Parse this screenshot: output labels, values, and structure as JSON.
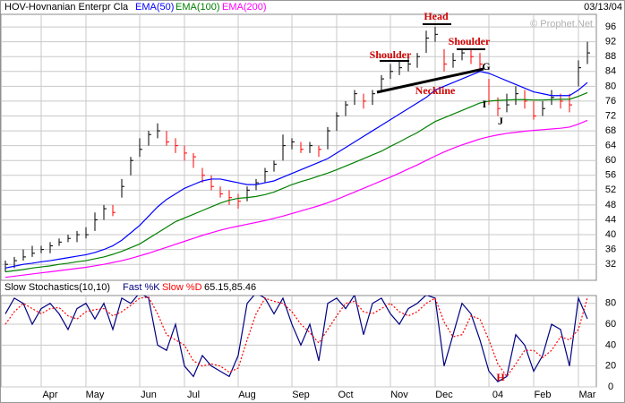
{
  "header": {
    "date": "03/13/04",
    "watermark": "© Prophet.Net"
  },
  "chart_data": [
    {
      "type": "ohlc",
      "title": "HOV-Hovnanian Enterpr Cla",
      "high": [
        33,
        34,
        36,
        37,
        37,
        38,
        39,
        40,
        41,
        42,
        46,
        48,
        48,
        55,
        61,
        66,
        68,
        70,
        68,
        66,
        64,
        62,
        58,
        56,
        53,
        52,
        51,
        53,
        55,
        58,
        60,
        67,
        66,
        65,
        65,
        64,
        69,
        73,
        76,
        79,
        78,
        79,
        83,
        86,
        87,
        88,
        89,
        95,
        96,
        90,
        89,
        90,
        90,
        89,
        82,
        77,
        78,
        80,
        79,
        76,
        76,
        79,
        78,
        78,
        87,
        92
      ],
      "low": [
        30,
        31,
        33,
        34,
        35,
        35,
        37,
        38,
        38,
        39,
        41,
        44,
        45,
        50,
        56,
        61,
        64,
        66,
        64,
        62,
        60,
        58,
        54,
        52,
        50,
        48,
        47,
        49,
        52,
        54,
        57,
        60,
        63,
        62,
        62,
        61,
        63,
        68,
        72,
        75,
        74,
        75,
        79,
        82,
        83,
        84,
        85,
        89,
        92,
        84,
        85,
        87,
        86,
        84,
        75,
        72,
        73,
        75,
        74,
        71,
        72,
        75,
        74,
        73,
        80,
        86
      ],
      "close": [
        32,
        33,
        34,
        35,
        36,
        37,
        38,
        39,
        40,
        40,
        44,
        47,
        46,
        53,
        60,
        63,
        67,
        68,
        65,
        64,
        62,
        61,
        56,
        53,
        51,
        50,
        49,
        52,
        54,
        57,
        59,
        64,
        65,
        63,
        64,
        63,
        68,
        72,
        75,
        78,
        76,
        78,
        82,
        84,
        85,
        86,
        88,
        93,
        94,
        86,
        87,
        89,
        88,
        86,
        76,
        74,
        75,
        78,
        76,
        72,
        74,
        77,
        76,
        75,
        85,
        89
      ],
      "up_color": "#000000",
      "down_color": "#ff0000",
      "series": [
        {
          "name": "EMA(50)",
          "color": "#0000ff",
          "values": [
            31,
            31.5,
            32,
            32.3,
            32.7,
            33,
            33.4,
            33.8,
            34.2,
            34.6,
            35.2,
            36,
            37,
            38.5,
            40.5,
            42.5,
            45,
            47.5,
            49.5,
            51,
            52.5,
            53.5,
            54.5,
            55,
            55,
            54.5,
            54,
            53.5,
            53.5,
            54,
            54.5,
            55.5,
            56.5,
            57.5,
            58.5,
            59.5,
            60.5,
            62,
            63.5,
            65,
            66.5,
            68,
            69.5,
            71,
            72.5,
            74,
            75.5,
            77,
            79,
            80,
            81,
            82,
            83,
            84,
            83.5,
            82.5,
            81.5,
            80.5,
            79.5,
            78.5,
            78,
            77.5,
            77.5,
            77.5,
            79,
            81
          ]
        },
        {
          "name": "EMA(100)",
          "color": "#008000",
          "values": [
            30,
            30.3,
            30.6,
            31,
            31.3,
            31.6,
            32,
            32.3,
            32.7,
            33,
            33.5,
            34,
            34.7,
            35.5,
            36.5,
            37.5,
            39,
            40.5,
            42,
            43.5,
            44.5,
            45.5,
            46.5,
            47.5,
            48.5,
            49.3,
            49.8,
            50,
            50.3,
            50.8,
            51.5,
            52.5,
            53.5,
            54.3,
            55,
            55.8,
            56.6,
            57.5,
            58.5,
            59.5,
            60.5,
            61.5,
            62.5,
            63.8,
            65,
            66.3,
            67.5,
            69,
            70.5,
            71.5,
            72.5,
            73.5,
            74.5,
            75.5,
            76,
            76.2,
            76.3,
            76.4,
            76.4,
            76.3,
            76.3,
            76.4,
            76.5,
            76.5,
            77.3,
            78.3
          ]
        },
        {
          "name": "EMA(200)",
          "color": "#ff00ff",
          "values": [
            28.5,
            28.8,
            29.1,
            29.4,
            29.7,
            30,
            30.3,
            30.6,
            30.9,
            31.2,
            31.6,
            32,
            32.5,
            33,
            33.6,
            34.3,
            35,
            35.8,
            36.6,
            37.4,
            38.2,
            39,
            39.8,
            40.5,
            41.2,
            41.8,
            42.3,
            42.8,
            43.3,
            43.8,
            44.4,
            45,
            45.7,
            46.4,
            47.1,
            47.8,
            48.6,
            49.5,
            50.5,
            51.5,
            52.5,
            53.5,
            54.5,
            55.5,
            56.6,
            57.7,
            58.8,
            60,
            61.2,
            62.3,
            63.3,
            64.2,
            65,
            65.8,
            66.4,
            66.9,
            67.3,
            67.6,
            67.9,
            68.1,
            68.3,
            68.5,
            68.7,
            69,
            69.8,
            70.8
          ]
        }
      ],
      "ylim": [
        27.7,
        99.4
      ],
      "yticks": [
        32,
        36,
        40,
        44,
        48,
        52,
        56,
        60,
        64,
        68,
        72,
        76,
        80,
        84,
        88,
        92,
        96
      ],
      "grid": true,
      "annotations": [
        "Head",
        "Shoulder",
        "Shoulder",
        "Neckline",
        "G",
        "I",
        "J"
      ]
    },
    {
      "type": "line",
      "title": "Slow Stochastics(10,10)",
      "readout": "65.15,85.46",
      "categories": [
        null,
        null,
        null,
        null,
        "Apr",
        null,
        null,
        null,
        null,
        "May",
        null,
        null,
        null,
        null,
        null,
        "Jun",
        null,
        null,
        null,
        null,
        "Jul",
        null,
        null,
        null,
        null,
        null,
        "Aug",
        null,
        null,
        null,
        null,
        null,
        "Sep",
        null,
        null,
        null,
        null,
        "Oct",
        null,
        null,
        null,
        null,
        null,
        "Nov",
        null,
        null,
        null,
        null,
        "Dec",
        null,
        null,
        null,
        null,
        null,
        "04",
        null,
        null,
        null,
        null,
        "Feb",
        null,
        null,
        null,
        null,
        "Mar",
        null
      ],
      "series": [
        {
          "name": "Fast %K",
          "color": "#000080",
          "style": "solid",
          "values": [
            70,
            85,
            80,
            60,
            75,
            80,
            70,
            55,
            75,
            80,
            65,
            80,
            55,
            85,
            80,
            90,
            85,
            40,
            35,
            60,
            20,
            10,
            30,
            20,
            15,
            10,
            30,
            80,
            90,
            85,
            70,
            85,
            60,
            40,
            60,
            25,
            80,
            85,
            75,
            88,
            50,
            80,
            85,
            70,
            60,
            75,
            80,
            88,
            85,
            20,
            50,
            80,
            70,
            45,
            15,
            5,
            10,
            50,
            40,
            15,
            30,
            60,
            55,
            20,
            85,
            65.15
          ]
        },
        {
          "name": "Slow %D",
          "color": "#ff0000",
          "style": "dotted",
          "values": [
            60,
            72,
            80,
            75,
            70,
            75,
            76,
            68,
            65,
            72,
            74,
            75,
            68,
            72,
            78,
            85,
            86,
            70,
            50,
            45,
            40,
            25,
            20,
            22,
            20,
            14,
            18,
            45,
            70,
            85,
            82,
            80,
            72,
            60,
            52,
            42,
            55,
            68,
            80,
            82,
            72,
            70,
            75,
            80,
            72,
            68,
            72,
            80,
            85,
            62,
            48,
            50,
            68,
            65,
            45,
            22,
            10,
            22,
            35,
            35,
            28,
            35,
            48,
            45,
            55,
            85.46
          ]
        }
      ],
      "ylim": [
        0,
        87.5
      ],
      "yticks": [
        0,
        20,
        40,
        60,
        80
      ],
      "grid": true,
      "annotations": [
        "H"
      ]
    }
  ]
}
